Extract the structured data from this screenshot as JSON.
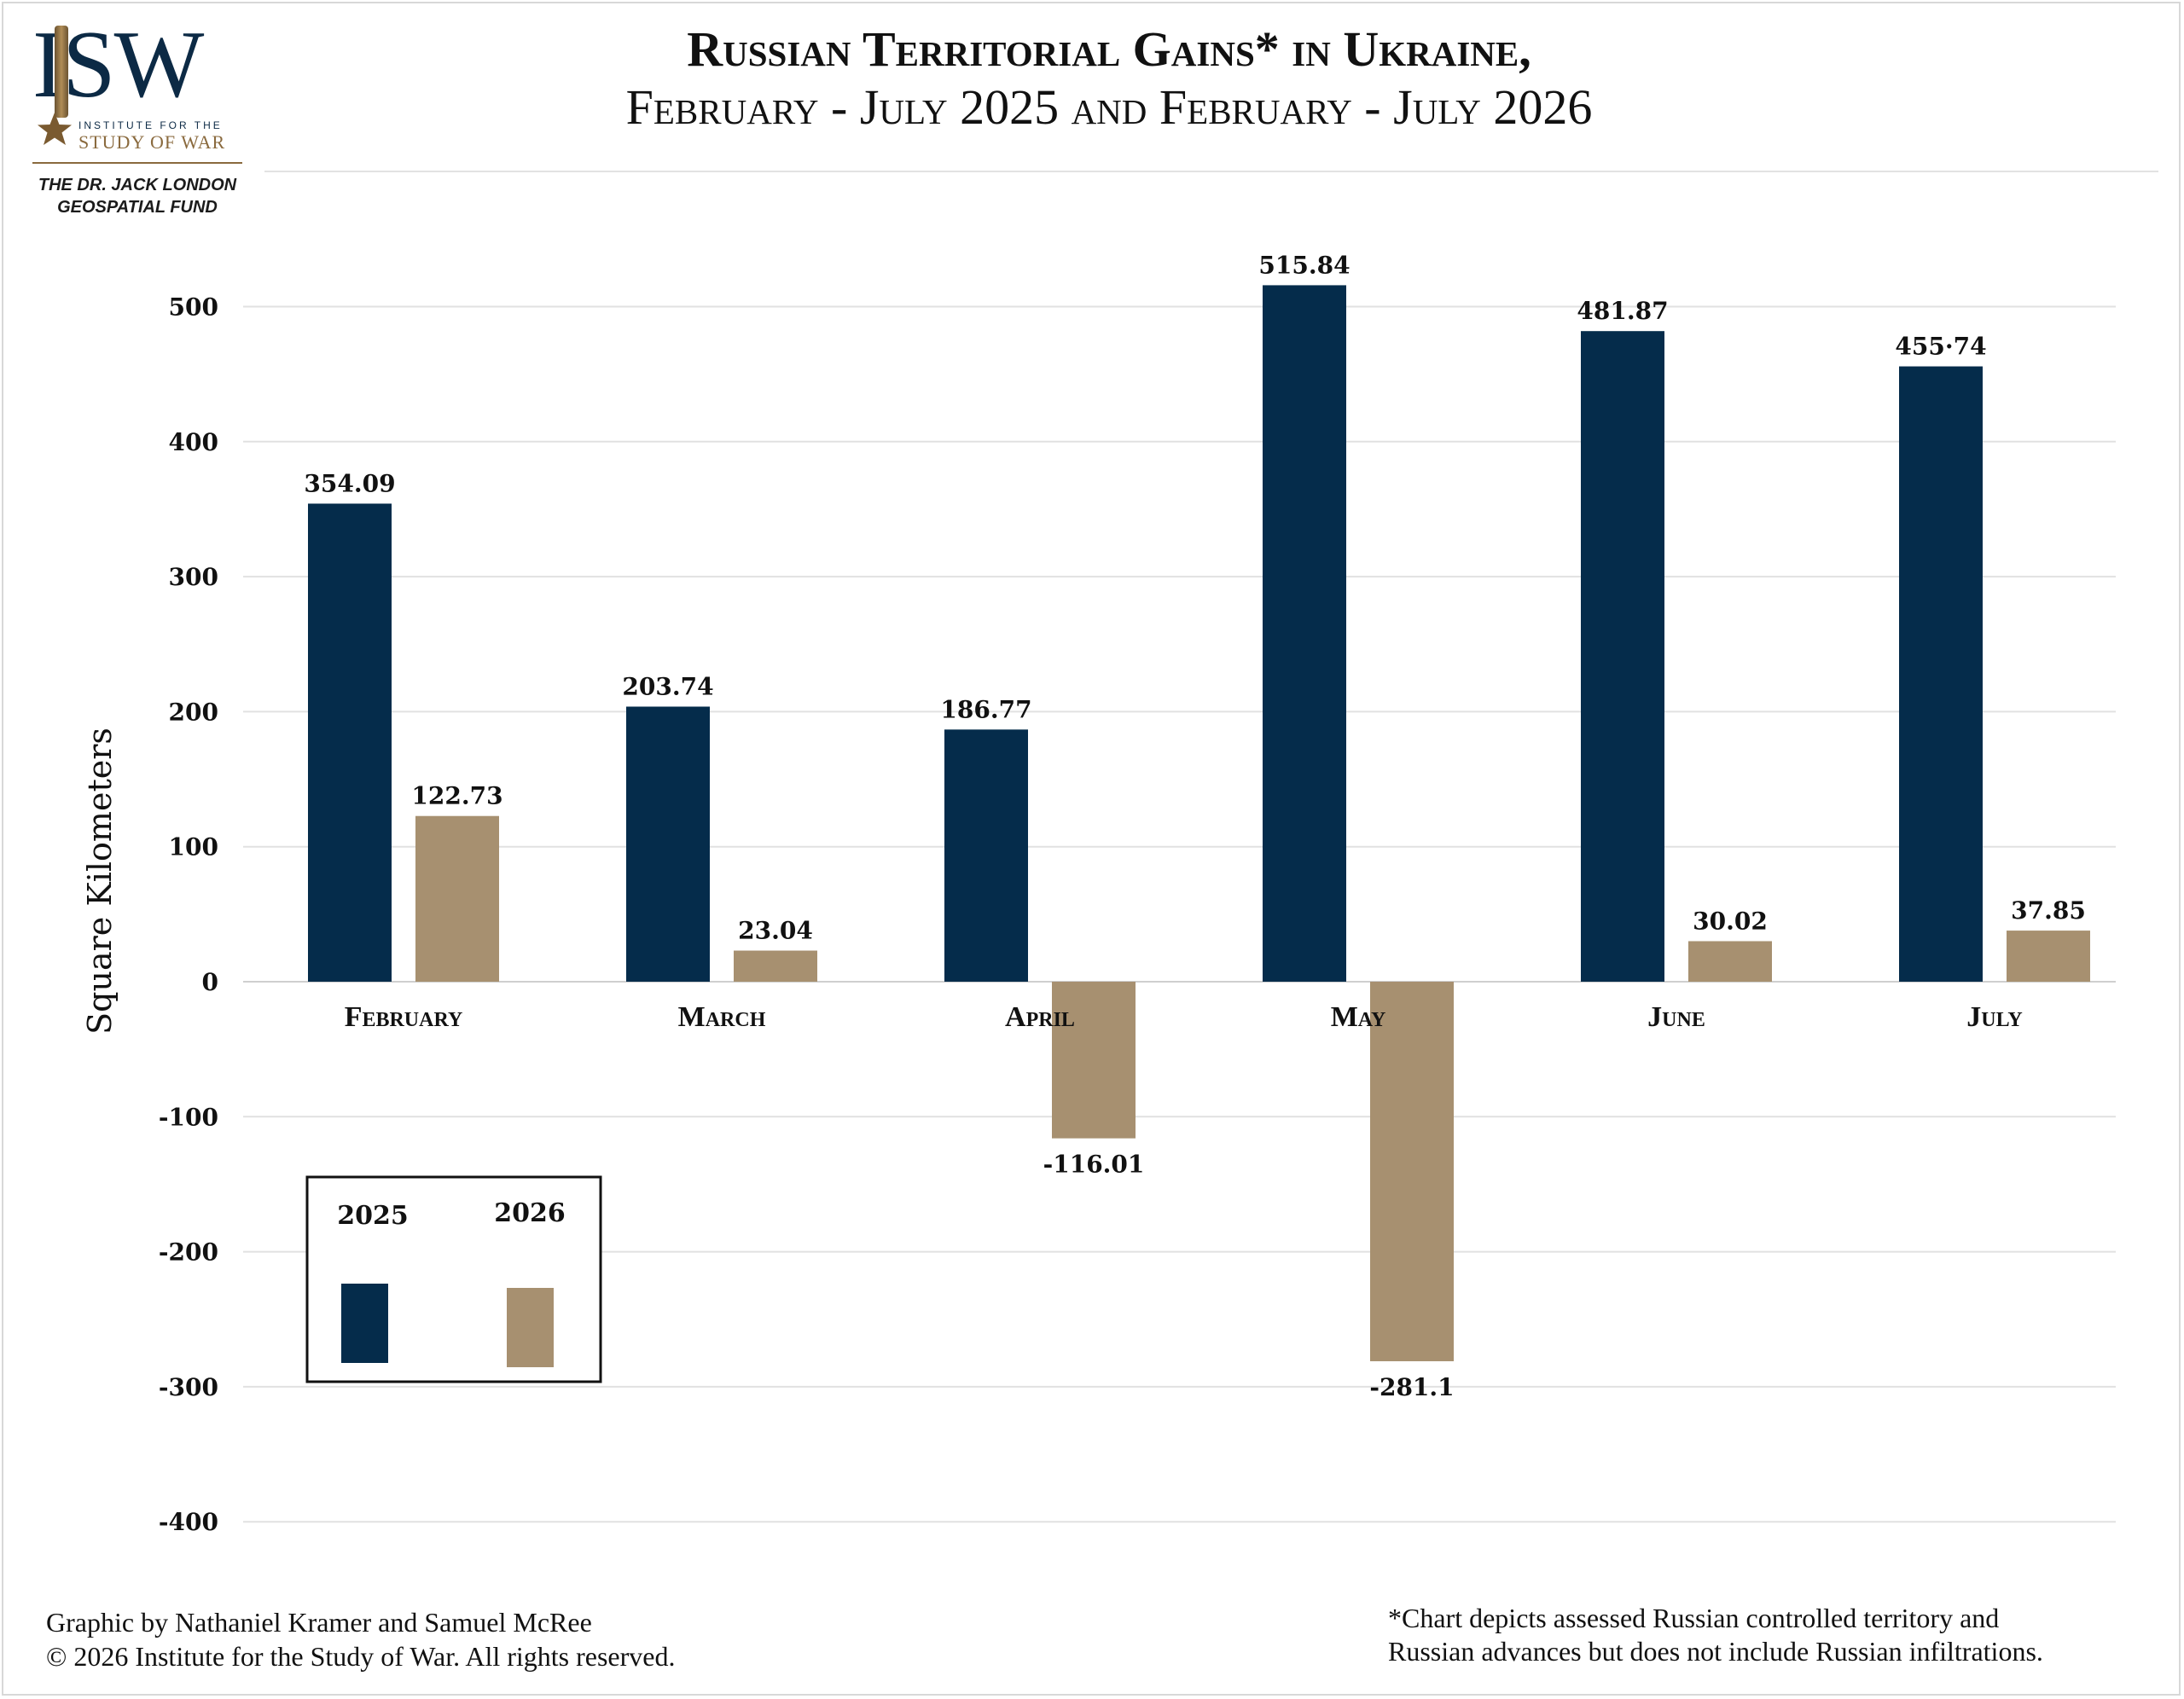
{
  "logo": {
    "wordmark": "ISW",
    "subline1": "INSTITUTE FOR THE",
    "subline2": "STUDY OF WAR",
    "fund_line1": "THE DR. JACK LONDON",
    "fund_line2": "GEOSPATIAL FUND",
    "colors": {
      "navy": "#0c2a45",
      "gold": "#8a6a3e"
    }
  },
  "title": "Russian Territorial Gains* in Ukraine,",
  "subtitle": "February - July 2025 and February - July 2026",
  "footer": {
    "credit_line1": "Graphic by Nathaniel Kramer and Samuel McRee",
    "credit_line2": "© 2026 Institute for the Study of War. All rights reserved.",
    "footnote_line1": "*Chart depicts assessed Russian controlled territory and",
    "footnote_line2": "Russian advances but does not include Russian infiltrations."
  },
  "chart_data": {
    "type": "bar",
    "categories": [
      "February",
      "March",
      "April",
      "May",
      "June",
      "July"
    ],
    "series": [
      {
        "name": "2025",
        "values": [
          354.09,
          203.74,
          186.77,
          515.84,
          481.87,
          455.74
        ],
        "labels": [
          "354.09",
          "203.74",
          "186.77",
          "515.84",
          "481.87",
          "455·74"
        ],
        "color": "#052c4b"
      },
      {
        "name": "2026",
        "values": [
          122.73,
          23.04,
          -116.01,
          -281.1,
          30.02,
          37.85
        ],
        "labels": [
          "122.73",
          "23.04",
          "-116.01",
          "-281.1",
          "30.02",
          "37.85"
        ],
        "color": "#a79070"
      }
    ],
    "ylabel": "Square Kilometers",
    "xlabel": "",
    "ylim": [
      -400,
      500
    ],
    "yticks": [
      500,
      400,
      300,
      200,
      100,
      0,
      -100,
      -200,
      -300,
      -400
    ],
    "grid": true,
    "legend_position": "bottom-left"
  }
}
